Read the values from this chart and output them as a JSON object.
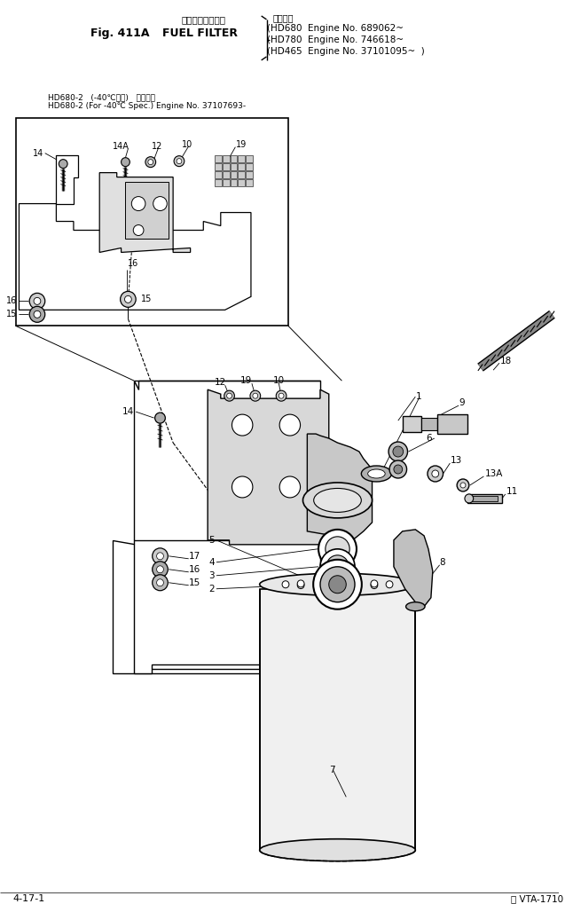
{
  "title_japanese": "フゥエルフィルタ",
  "title_english": "FUEL FILTER",
  "fig_label": "Fig. 411A",
  "subtitle_japanese": "適用号機",
  "engine1": "HD680  Engine No. 689062~",
  "engine2": "HD780  Engine No. 746618~",
  "engine3": "HD465  Engine No. 37101095~",
  "note1": "HD680-2   (-40℃仕様)   適用号機",
  "note2": "HD680-2 (For -40℃ Spec.) Engine No. 37107693-",
  "page_left": "4-17-1",
  "page_right": "Ⓢ VTA-1710",
  "bg": "#ffffff",
  "lc": "#000000"
}
